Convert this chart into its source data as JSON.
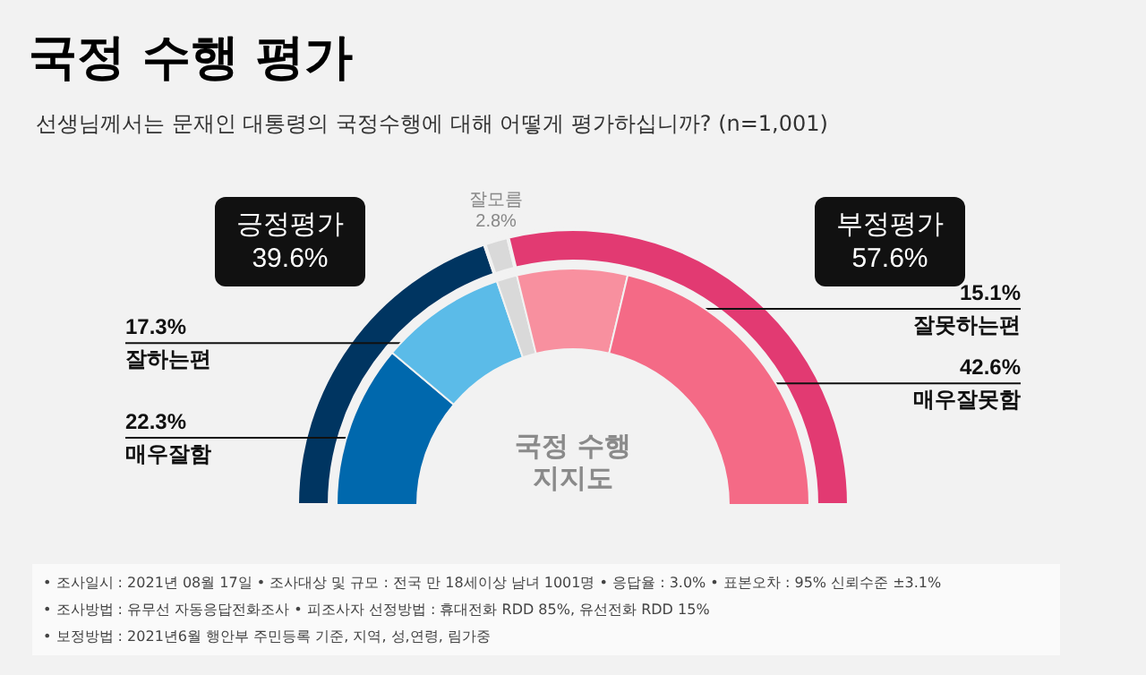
{
  "chart_data": [
    {
      "type": "donut",
      "title": "국정 수행 평가",
      "subtitle": "선생님께서는 문재인 대통령의 국정수행에 대해 어떻게 평가하십니까? (n=1,001)",
      "categories": [
        "긍정평가",
        "잘모름",
        "부정평가"
      ],
      "values": [
        39.6,
        2.8,
        57.6
      ],
      "colors": [
        "#003561",
        "#d9d9d9",
        "#e23a72"
      ],
      "value_labels": [
        "39.6%",
        "2.8%",
        "57.6%"
      ],
      "annotations": [
        "국정 수행 지지도",
        "• 조사일시 : 2021년 08월 17일   • 조사대상 및 규모 : 전국 만 18세이상 남녀 1001명   • 응답율 : 3.0%   • 표본오차 : 95% 신뢰수준 ±3.1%",
        "• 조사방법 : 유무선 자동응답전화조사   • 피조사자 선정방법 : 휴대전화 RDD 85%, 유선전화 RDD 15%",
        "• 보정방법 : 2021년6월 행안부 주민등록 기준, 지역, 성,연령, 림가중"
      ]
    },
    {
      "type": "donut",
      "categories": [
        "매우잘함",
        "잘하는편",
        null,
        "잘못하는편",
        "매우잘못함"
      ],
      "values": [
        22.3,
        17.3,
        2.8,
        15.1,
        42.6
      ],
      "colors": [
        "#0068ad",
        "#5bbbe8",
        "#d9d9d9",
        "#f8909f",
        "#f46a86"
      ],
      "value_labels": [
        "22.3%",
        "17.3%",
        null,
        "15.1%",
        "42.6%"
      ]
    }
  ]
}
